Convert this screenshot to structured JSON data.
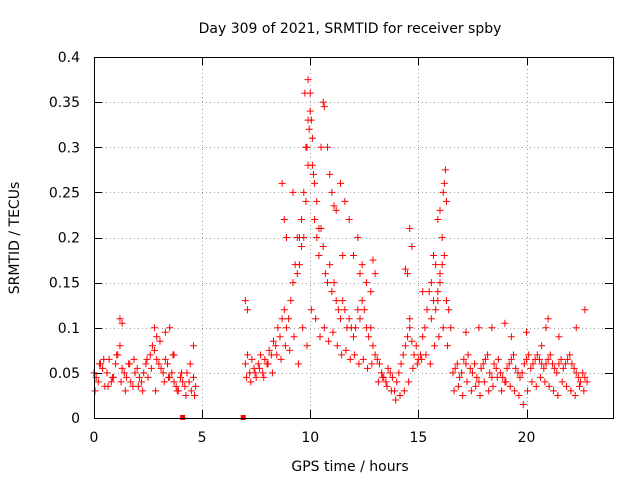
{
  "chart_data": {
    "type": "scatter",
    "title": "Day 309 of 2021, SRMTID for receiver spby",
    "xlabel": "GPS time / hours",
    "ylabel": "SRMTID / TECUs",
    "xlim": [
      0,
      24
    ],
    "ylim": [
      0,
      0.4
    ],
    "xticks": [
      0,
      5,
      10,
      15,
      20
    ],
    "yticks": [
      0,
      0.05,
      0.1,
      0.15,
      0.2,
      0.25,
      0.3,
      0.35,
      0.4
    ],
    "xtick_labels": [
      "0",
      "5",
      "10",
      "15",
      "20"
    ],
    "ytick_labels": [
      "0",
      "0.05",
      "0.1",
      "0.15",
      "0.2",
      "0.25",
      "0.3",
      "0.35",
      "0.4"
    ],
    "grid": true,
    "marker": "plus",
    "color": "#ff0000",
    "gap_markers": [
      {
        "x": 4.1,
        "y": 0
      },
      {
        "x": 6.9,
        "y": 0
      }
    ],
    "series": [
      {
        "name": "SRMTID",
        "x": [
          0.0,
          0.1,
          0.2,
          0.3,
          0.4,
          0.5,
          0.6,
          0.7,
          0.8,
          0.9,
          1.0,
          1.1,
          1.2,
          1.3,
          1.4,
          1.5,
          1.6,
          1.7,
          1.8,
          1.9,
          2.0,
          2.1,
          2.2,
          2.3,
          2.4,
          2.5,
          2.6,
          2.7,
          2.8,
          2.9,
          3.0,
          3.1,
          3.2,
          3.3,
          3.4,
          3.5,
          3.6,
          3.7,
          3.8,
          3.9,
          4.0,
          4.1,
          4.2,
          4.3,
          4.4,
          4.5,
          4.6,
          4.7,
          0.05,
          0.25,
          0.45,
          0.65,
          0.85,
          1.05,
          1.25,
          1.45,
          1.65,
          1.85,
          2.05,
          2.25,
          2.45,
          2.65,
          2.85,
          3.05,
          3.25,
          3.45,
          3.65,
          3.85,
          4.05,
          4.25,
          4.45,
          4.65,
          1.2,
          1.3,
          2.8,
          2.9,
          3.3,
          3.5,
          3.7,
          4.6,
          7.0,
          7.1,
          7.2,
          7.3,
          7.4,
          7.5,
          7.6,
          7.7,
          7.8,
          7.9,
          8.0,
          8.1,
          8.2,
          8.3,
          8.4,
          8.5,
          8.6,
          8.7,
          8.8,
          8.9,
          9.0,
          9.1,
          9.2,
          9.3,
          9.4,
          9.5,
          9.6,
          9.7,
          9.8,
          9.9,
          10.0,
          10.1,
          10.2,
          10.3,
          10.4,
          10.5,
          10.6,
          10.7,
          10.8,
          10.9,
          11.0,
          11.1,
          11.2,
          11.3,
          11.4,
          11.5,
          11.6,
          11.7,
          11.8,
          11.9,
          12.0,
          12.1,
          12.2,
          12.3,
          12.4,
          12.5,
          12.6,
          12.7,
          12.8,
          12.9,
          13.0,
          7.05,
          7.25,
          7.45,
          7.65,
          7.85,
          8.05,
          8.25,
          8.45,
          8.65,
          8.85,
          9.05,
          9.25,
          9.45,
          9.65,
          9.85,
          10.05,
          10.25,
          10.45,
          10.65,
          10.85,
          11.05,
          11.25,
          11.45,
          11.65,
          11.85,
          12.05,
          12.25,
          12.45,
          12.65,
          12.85,
          7.0,
          7.1,
          8.7,
          8.8,
          8.9,
          9.2,
          9.4,
          9.5,
          9.7,
          9.8,
          9.85,
          9.9,
          9.95,
          10.0,
          10.05,
          10.1,
          10.2,
          10.3,
          10.4,
          10.6,
          10.65,
          10.8,
          10.9,
          11.0,
          11.2,
          11.4,
          11.6,
          11.8,
          12.0,
          12.2,
          12.4,
          12.6,
          12.8,
          13.0,
          9.6,
          9.75,
          9.9,
          10.15,
          10.5,
          11.1,
          11.5,
          12.3,
          12.9,
          13.1,
          13.2,
          13.3,
          13.4,
          13.5,
          13.6,
          13.7,
          13.8,
          13.9,
          14.0,
          14.1,
          14.2,
          14.3,
          14.4,
          14.5,
          14.6,
          14.7,
          14.8,
          14.9,
          15.0,
          15.1,
          15.2,
          15.3,
          15.4,
          15.5,
          15.6,
          15.7,
          15.8,
          15.9,
          16.0,
          16.1,
          16.2,
          16.3,
          16.4,
          16.5,
          13.15,
          13.35,
          13.55,
          13.75,
          13.95,
          14.15,
          14.35,
          14.55,
          14.75,
          14.95,
          15.15,
          15.35,
          15.55,
          15.75,
          15.95,
          16.15,
          16.35,
          14.4,
          14.5,
          14.6,
          14.7,
          15.2,
          15.6,
          15.7,
          15.8,
          15.9,
          16.0,
          16.1,
          16.15,
          16.2,
          16.25,
          16.3,
          16.0,
          15.9,
          14.6,
          16.6,
          16.7,
          16.8,
          16.9,
          17.0,
          17.1,
          17.2,
          17.3,
          17.4,
          17.5,
          17.6,
          17.7,
          17.8,
          17.9,
          18.0,
          18.1,
          18.2,
          18.3,
          18.4,
          18.5,
          18.6,
          18.7,
          18.8,
          18.9,
          19.0,
          19.1,
          19.2,
          19.3,
          19.4,
          19.5,
          19.6,
          19.7,
          19.8,
          19.9,
          20.0,
          20.1,
          20.2,
          20.3,
          20.4,
          20.5,
          20.6,
          20.7,
          20.8,
          20.9,
          21.0,
          21.1,
          21.2,
          21.3,
          21.4,
          21.5,
          21.6,
          21.7,
          21.8,
          21.9,
          22.0,
          22.1,
          22.2,
          22.3,
          22.4,
          22.5,
          22.6,
          22.7,
          22.8,
          16.65,
          16.85,
          17.05,
          17.25,
          17.45,
          17.65,
          17.85,
          18.05,
          18.25,
          18.45,
          18.65,
          18.85,
          19.05,
          19.25,
          19.45,
          19.65,
          19.85,
          20.05,
          20.25,
          20.45,
          20.65,
          20.85,
          21.05,
          21.25,
          21.45,
          21.65,
          21.85,
          22.05,
          22.25,
          22.45,
          22.65,
          17.2,
          18.4,
          19.3,
          20.7,
          21.0,
          21.5,
          22.3,
          22.7,
          17.8,
          19.0,
          20.0,
          20.9
        ],
        "y": [
          0.05,
          0.045,
          0.04,
          0.06,
          0.055,
          0.035,
          0.05,
          0.065,
          0.04,
          0.045,
          0.06,
          0.07,
          0.08,
          0.055,
          0.05,
          0.045,
          0.06,
          0.04,
          0.035,
          0.05,
          0.055,
          0.045,
          0.04,
          0.05,
          0.06,
          0.045,
          0.07,
          0.08,
          0.075,
          0.065,
          0.06,
          0.055,
          0.05,
          0.065,
          0.06,
          0.045,
          0.05,
          0.04,
          0.035,
          0.03,
          0.045,
          0.04,
          0.035,
          0.05,
          0.04,
          0.03,
          0.045,
          0.035,
          0.03,
          0.06,
          0.065,
          0.035,
          0.045,
          0.07,
          0.04,
          0.03,
          0.06,
          0.065,
          0.035,
          0.03,
          0.065,
          0.055,
          0.03,
          0.085,
          0.04,
          0.045,
          0.07,
          0.03,
          0.05,
          0.025,
          0.06,
          0.025,
          0.11,
          0.105,
          0.1,
          0.09,
          0.095,
          0.1,
          0.07,
          0.08,
          0.06,
          0.07,
          0.05,
          0.065,
          0.055,
          0.045,
          0.06,
          0.07,
          0.05,
          0.065,
          0.06,
          0.075,
          0.07,
          0.085,
          0.08,
          0.1,
          0.09,
          0.11,
          0.12,
          0.1,
          0.11,
          0.13,
          0.15,
          0.17,
          0.16,
          0.2,
          0.22,
          0.25,
          0.3,
          0.33,
          0.36,
          0.28,
          0.22,
          0.2,
          0.18,
          0.21,
          0.19,
          0.16,
          0.15,
          0.17,
          0.14,
          0.15,
          0.13,
          0.12,
          0.11,
          0.13,
          0.12,
          0.1,
          0.11,
          0.1,
          0.09,
          0.1,
          0.12,
          0.11,
          0.13,
          0.12,
          0.1,
          0.09,
          0.1,
          0.08,
          0.07,
          0.045,
          0.04,
          0.05,
          0.055,
          0.045,
          0.06,
          0.05,
          0.07,
          0.065,
          0.08,
          0.075,
          0.09,
          0.06,
          0.1,
          0.08,
          0.12,
          0.11,
          0.09,
          0.1,
          0.085,
          0.095,
          0.08,
          0.07,
          0.075,
          0.065,
          0.07,
          0.06,
          0.065,
          0.055,
          0.06,
          0.13,
          0.12,
          0.26,
          0.22,
          0.2,
          0.25,
          0.2,
          0.17,
          0.2,
          0.24,
          0.3,
          0.375,
          0.32,
          0.34,
          0.33,
          0.31,
          0.26,
          0.24,
          0.21,
          0.35,
          0.345,
          0.3,
          0.27,
          0.25,
          0.23,
          0.26,
          0.24,
          0.22,
          0.18,
          0.2,
          0.17,
          0.15,
          0.14,
          0.16,
          0.19,
          0.36,
          0.28,
          0.27,
          0.3,
          0.235,
          0.18,
          0.16,
          0.175,
          0.065,
          0.06,
          0.05,
          0.045,
          0.04,
          0.055,
          0.05,
          0.045,
          0.03,
          0.04,
          0.05,
          0.06,
          0.07,
          0.08,
          0.09,
          0.1,
          0.085,
          0.07,
          0.08,
          0.065,
          0.07,
          0.09,
          0.1,
          0.12,
          0.14,
          0.11,
          0.13,
          0.12,
          0.14,
          0.16,
          0.17,
          0.18,
          0.13,
          0.12,
          0.1,
          0.04,
          0.045,
          0.035,
          0.03,
          0.02,
          0.025,
          0.03,
          0.04,
          0.055,
          0.06,
          0.065,
          0.07,
          0.06,
          0.08,
          0.09,
          0.1,
          0.08,
          0.165,
          0.16,
          0.21,
          0.19,
          0.14,
          0.15,
          0.18,
          0.17,
          0.22,
          0.23,
          0.2,
          0.25,
          0.26,
          0.275,
          0.24,
          0.15,
          0.13,
          0.11,
          0.05,
          0.055,
          0.06,
          0.045,
          0.05,
          0.065,
          0.06,
          0.07,
          0.055,
          0.05,
          0.06,
          0.045,
          0.04,
          0.055,
          0.06,
          0.065,
          0.07,
          0.05,
          0.045,
          0.06,
          0.055,
          0.065,
          0.05,
          0.045,
          0.04,
          0.055,
          0.06,
          0.065,
          0.07,
          0.055,
          0.05,
          0.045,
          0.05,
          0.06,
          0.065,
          0.07,
          0.055,
          0.06,
          0.065,
          0.07,
          0.065,
          0.06,
          0.055,
          0.06,
          0.065,
          0.07,
          0.06,
          0.055,
          0.05,
          0.06,
          0.065,
          0.055,
          0.06,
          0.065,
          0.07,
          0.06,
          0.055,
          0.05,
          0.045,
          0.04,
          0.05,
          0.045,
          0.04,
          0.03,
          0.035,
          0.025,
          0.04,
          0.03,
          0.035,
          0.025,
          0.04,
          0.03,
          0.035,
          0.045,
          0.03,
          0.04,
          0.035,
          0.03,
          0.025,
          0.015,
          0.03,
          0.04,
          0.035,
          0.045,
          0.04,
          0.035,
          0.03,
          0.025,
          0.04,
          0.035,
          0.03,
          0.025,
          0.035,
          0.03,
          0.095,
          0.1,
          0.09,
          0.08,
          0.11,
          0.09,
          0.1,
          0.12,
          0.1,
          0.105,
          0.095,
          0.1
        ]
      }
    ]
  }
}
